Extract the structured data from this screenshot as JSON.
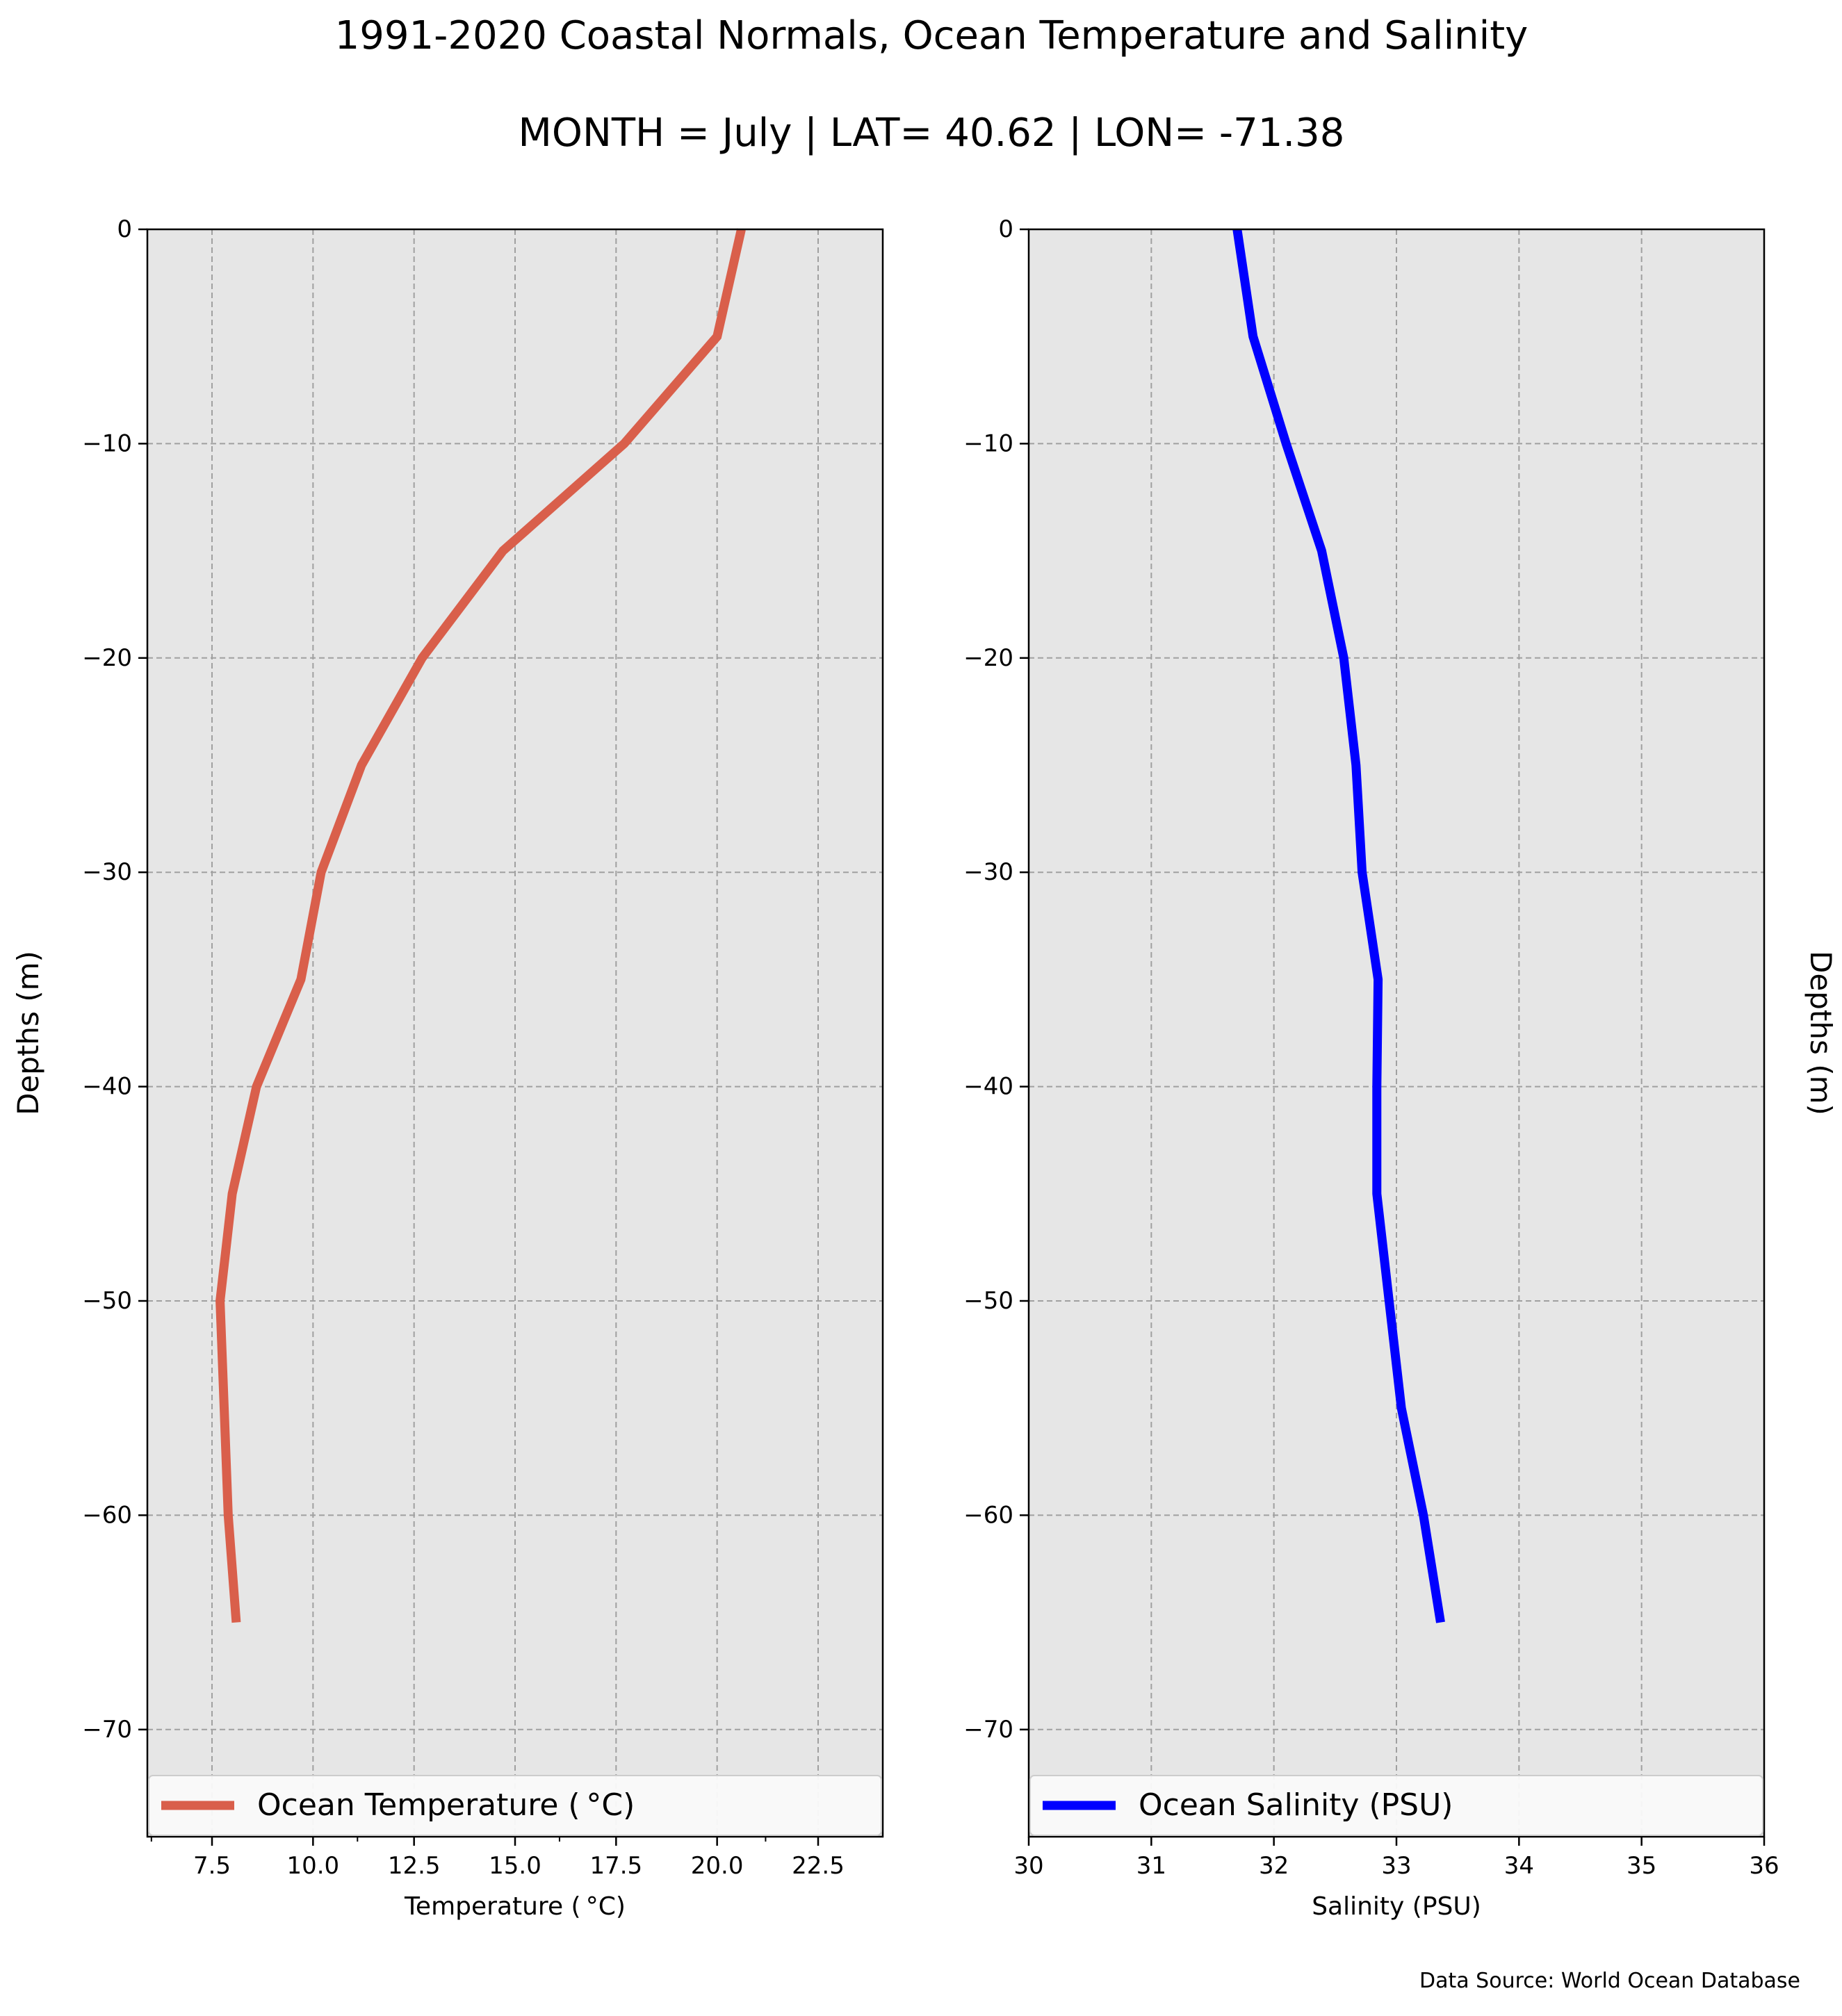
{
  "figure": {
    "title": "1991-2020 Coastal Normals, Ocean Temperature and Salinity",
    "subtitle": "MONTH = July | LAT= 40.62 | LON= -71.38",
    "source_note": "Data Source: World Ocean Database",
    "panel_background": "#e6e6e6",
    "grid_color": "#a0a0a0"
  },
  "chart_data": [
    {
      "type": "line",
      "xlabel": "Temperature ($^\\circ$C)",
      "xlabel_display": "Temperature ( °C)",
      "ylabel": "Depths (m)",
      "xlim": [
        5.9,
        24.1
      ],
      "ylim": [
        -75,
        0
      ],
      "xticks_major": [
        7.5,
        10.0,
        12.5,
        15.0,
        17.5,
        20.0,
        22.5
      ],
      "xtick_labels": [
        "7.5",
        "10.0",
        "12.5",
        "15.0",
        "17.5",
        "20.0",
        "22.5"
      ],
      "xticks_minor": [
        6.0,
        11.1,
        16.1,
        21.2
      ],
      "yticks": [
        0,
        -10,
        -20,
        -30,
        -40,
        -50,
        -60,
        -70
      ],
      "ytick_labels": [
        "0",
        "−10",
        "−20",
        "−30",
        "−40",
        "−50",
        "−60",
        "−70"
      ],
      "ylabel_side": "left",
      "grid": true,
      "legend_position": "lower center",
      "series": [
        {
          "name": "Ocean Temperature ($^\\circ$C)",
          "legend_label": "Ocean Temperature ( °C)",
          "color": "#d95f4b",
          "x": [
            20.6,
            20.0,
            17.7,
            14.7,
            12.7,
            11.2,
            10.2,
            9.7,
            8.6,
            8.0,
            7.7,
            7.8,
            7.9,
            8.1
          ],
          "y": [
            0,
            -5,
            -10,
            -15,
            -20,
            -25,
            -30,
            -35,
            -40,
            -45,
            -50,
            -55,
            -60,
            -65
          ]
        }
      ]
    },
    {
      "type": "line",
      "xlabel": "Salinity (PSU)",
      "ylabel": "Depths (m)",
      "xlim": [
        30,
        36
      ],
      "ylim": [
        -75,
        0
      ],
      "xticks_major": [
        30,
        31,
        32,
        33,
        34,
        35,
        36
      ],
      "xtick_labels": [
        "30",
        "31",
        "32",
        "33",
        "34",
        "35",
        "36"
      ],
      "xticks_minor": [],
      "yticks": [
        0,
        -10,
        -20,
        -30,
        -40,
        -50,
        -60,
        -70
      ],
      "ytick_labels": [
        "0",
        "−10",
        "−20",
        "−30",
        "−40",
        "−50",
        "−60",
        "−70"
      ],
      "ylabel_side": "right",
      "grid": true,
      "legend_position": "lower center",
      "series": [
        {
          "name": "Ocean Salinity (PSU)",
          "legend_label": "Ocean Salinity (PSU)",
          "color": "#0000ff",
          "x": [
            31.7,
            31.83,
            32.1,
            32.39,
            32.57,
            32.67,
            32.72,
            32.85,
            32.84,
            32.84,
            32.94,
            33.04,
            33.22,
            33.36
          ],
          "y": [
            0,
            -5,
            -10,
            -15,
            -20,
            -25,
            -30,
            -35,
            -40,
            -45,
            -50,
            -55,
            -60,
            -65
          ]
        }
      ]
    }
  ]
}
